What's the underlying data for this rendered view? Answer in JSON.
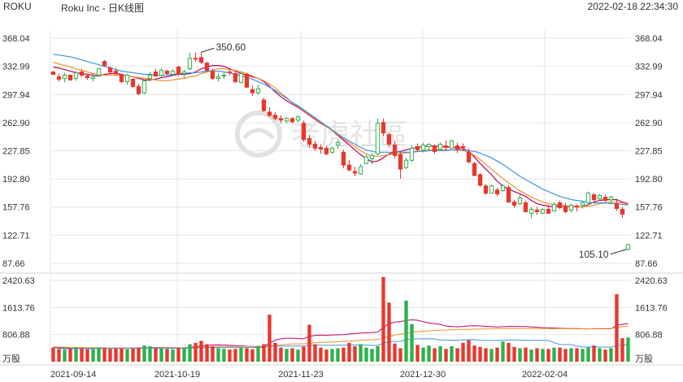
{
  "header": {
    "ticker": "ROKU",
    "title": "Roku Inc - 日K线图",
    "timestamp": "2022-02-18 22:34:30"
  },
  "watermark": "老虎社區",
  "colors": {
    "up": "#2bb24c",
    "down": "#e8372d",
    "ma1": "#c00060",
    "ma2": "#f09030",
    "ma3": "#3c96e0",
    "grid": "#e6e6e6"
  },
  "chart_data": [
    {
      "type": "candlestick",
      "name": "price",
      "y_ticks": [
        "368.04",
        "332.99",
        "297.94",
        "262.90",
        "227.85",
        "192.80",
        "157.76",
        "122.71",
        "87.66"
      ],
      "ylim": [
        87.66,
        368.04
      ],
      "x_labels": [
        "2021-09-14",
        "2021-10-19",
        "2021-11-23",
        "2021-12-30",
        "2022-02-04"
      ],
      "annotations": [
        {
          "text": "350.60",
          "value": 350.6
        },
        {
          "text": "105.10",
          "value": 105.1
        }
      ],
      "ohlc": [
        [
          326,
          327,
          322,
          323
        ],
        [
          320,
          324,
          314,
          317
        ],
        [
          318,
          325,
          313,
          322
        ],
        [
          322,
          323,
          315,
          316
        ],
        [
          318,
          327,
          315,
          325
        ],
        [
          326,
          330,
          320,
          322
        ],
        [
          321,
          324,
          316,
          319
        ],
        [
          318,
          324,
          314,
          320
        ],
        [
          322,
          331,
          320,
          330
        ],
        [
          339,
          341,
          332,
          334
        ],
        [
          331,
          333,
          324,
          326
        ],
        [
          327,
          331,
          322,
          324
        ],
        [
          322,
          324,
          312,
          314
        ],
        [
          314,
          324,
          310,
          322
        ],
        [
          317,
          318,
          306,
          308
        ],
        [
          308,
          311,
          297,
          299
        ],
        [
          300,
          317,
          298,
          315
        ],
        [
          318,
          326,
          314,
          322
        ],
        [
          326,
          330,
          320,
          321
        ],
        [
          322,
          331,
          319,
          328
        ],
        [
          327,
          329,
          322,
          324
        ],
        [
          323,
          329,
          321,
          327
        ],
        [
          332,
          334,
          321,
          323
        ],
        [
          324,
          329,
          318,
          326
        ],
        [
          330,
          350,
          328,
          343
        ],
        [
          343,
          350,
          339,
          342
        ],
        [
          344,
          351,
          336,
          338
        ],
        [
          337,
          339,
          326,
          328
        ],
        [
          327,
          330,
          316,
          318
        ],
        [
          318,
          325,
          314,
          320
        ],
        [
          321,
          326,
          317,
          322
        ],
        [
          326,
          330,
          322,
          325
        ],
        [
          324,
          328,
          312,
          314
        ],
        [
          313,
          326,
          312,
          324
        ],
        [
          323,
          325,
          306,
          307
        ],
        [
          304,
          309,
          296,
          300
        ],
        [
          300,
          310,
          297,
          305
        ],
        [
          291,
          294,
          276,
          278
        ],
        [
          276,
          282,
          270,
          272
        ],
        [
          272,
          276,
          266,
          268
        ],
        [
          268,
          272,
          262,
          266
        ],
        [
          265,
          270,
          262,
          268
        ],
        [
          268,
          270,
          262,
          264
        ],
        [
          266,
          272,
          263,
          270
        ],
        [
          262,
          265,
          239,
          242
        ],
        [
          243,
          248,
          231,
          236
        ],
        [
          236,
          240,
          228,
          231
        ],
        [
          232,
          236,
          224,
          230
        ],
        [
          231,
          234,
          222,
          224
        ],
        [
          226,
          233,
          224,
          231
        ],
        [
          235,
          241,
          230,
          238
        ],
        [
          226,
          229,
          206,
          210
        ],
        [
          210,
          216,
          202,
          204
        ],
        [
          202,
          208,
          196,
          200
        ],
        [
          199,
          211,
          198,
          208
        ],
        [
          212,
          223,
          211,
          220
        ],
        [
          218,
          225,
          211,
          222
        ],
        [
          224,
          268,
          222,
          262
        ],
        [
          263,
          268,
          246,
          250
        ],
        [
          248,
          251,
          232,
          236
        ],
        [
          235,
          240,
          218,
          222
        ],
        [
          223,
          226,
          193,
          205
        ],
        [
          207,
          219,
          205,
          216
        ],
        [
          216,
          235,
          214,
          231
        ],
        [
          233,
          237,
          226,
          229
        ],
        [
          229,
          238,
          226,
          235
        ],
        [
          233,
          237,
          228,
          236
        ],
        [
          234,
          236,
          224,
          227
        ],
        [
          230,
          238,
          229,
          236
        ],
        [
          234,
          241,
          228,
          232
        ],
        [
          231,
          242,
          231,
          240
        ],
        [
          234,
          238,
          225,
          229
        ],
        [
          233,
          237,
          228,
          232
        ],
        [
          226,
          231,
          212,
          214
        ],
        [
          212,
          214,
          196,
          197
        ],
        [
          198,
          200,
          183,
          185
        ],
        [
          184,
          186,
          173,
          175
        ],
        [
          175,
          186,
          175,
          184
        ],
        [
          179,
          182,
          171,
          174
        ],
        [
          178,
          186,
          177,
          184
        ],
        [
          182,
          185,
          163,
          164
        ],
        [
          164,
          167,
          157,
          160
        ],
        [
          162,
          173,
          160,
          169
        ],
        [
          163,
          166,
          151,
          152
        ],
        [
          150,
          158,
          144,
          155
        ],
        [
          154,
          158,
          148,
          152
        ],
        [
          150,
          156,
          149,
          155
        ],
        [
          155,
          160,
          149,
          150
        ],
        [
          153,
          164,
          152,
          161
        ],
        [
          163,
          166,
          155,
          157
        ],
        [
          159,
          163,
          150,
          152
        ],
        [
          154,
          162,
          151,
          160
        ],
        [
          159,
          161,
          152,
          158
        ],
        [
          160,
          165,
          156,
          163
        ],
        [
          163,
          177,
          161,
          175
        ],
        [
          173,
          175,
          165,
          167
        ],
        [
          168,
          174,
          165,
          172
        ],
        [
          170,
          173,
          164,
          166
        ],
        [
          167,
          172,
          163,
          170
        ],
        [
          162,
          168,
          153,
          156
        ],
        [
          155,
          158,
          144,
          149
        ],
        [
          105,
          112,
          104,
          111
        ]
      ],
      "ma_series": [
        {
          "values": [
            332,
            331,
            329,
            327,
            325,
            324,
            323,
            322,
            321,
            323,
            324,
            324,
            323,
            321,
            320,
            318,
            316,
            316,
            317,
            319,
            320,
            322,
            323,
            323,
            324,
            326,
            330,
            332,
            334,
            334,
            333,
            330,
            327,
            324,
            322,
            320,
            318,
            314,
            308,
            301,
            295,
            290,
            286,
            282,
            277,
            272,
            267,
            262,
            258,
            253,
            247,
            241,
            235,
            229,
            223,
            218,
            214,
            215,
            219,
            224,
            226,
            227,
            229,
            231,
            232,
            233,
            234,
            234,
            233,
            233,
            232,
            232,
            231,
            227,
            220,
            212,
            205,
            198,
            190,
            184,
            180,
            177,
            174,
            171,
            166,
            162,
            160,
            159,
            158,
            159,
            159,
            158,
            158,
            158,
            161,
            164,
            166,
            167,
            167,
            167,
            164,
            162
          ]
        },
        {
          "values": [
            338,
            336,
            334,
            332,
            330,
            328,
            326,
            324,
            323,
            322,
            322,
            322,
            322,
            321,
            320,
            319,
            318,
            317,
            316,
            315,
            315,
            316,
            317,
            318,
            320,
            321,
            324,
            326,
            328,
            330,
            330,
            329,
            328,
            326,
            324,
            321,
            318,
            315,
            311,
            306,
            300,
            294,
            288,
            283,
            278,
            273,
            268,
            263,
            258,
            253,
            248,
            243,
            238,
            233,
            228,
            224,
            221,
            221,
            222,
            223,
            224,
            224,
            225,
            226,
            227,
            228,
            229,
            229,
            229,
            229,
            229,
            229,
            228,
            226,
            222,
            217,
            211,
            205,
            199,
            193,
            188,
            183,
            178,
            174,
            170,
            167,
            164,
            162,
            161,
            160,
            159,
            159,
            158,
            158,
            159,
            160,
            162,
            163,
            164,
            164,
            163,
            161
          ]
        },
        {
          "values": [
            348,
            347,
            346,
            345,
            343,
            341,
            339,
            337,
            335,
            333,
            331,
            329,
            327,
            326,
            325,
            324,
            323,
            323,
            322,
            322,
            322,
            323,
            324,
            324,
            325,
            325,
            326,
            327,
            327,
            327,
            326,
            325,
            323,
            321,
            319,
            317,
            314,
            311,
            307,
            303,
            298,
            293,
            288,
            284,
            279,
            274,
            269,
            264,
            259,
            254,
            249,
            244,
            240,
            236,
            232,
            229,
            227,
            226,
            226,
            226,
            226,
            226,
            226,
            226,
            227,
            227,
            228,
            228,
            228,
            228,
            229,
            229,
            229,
            228,
            227,
            225,
            222,
            219,
            215,
            211,
            206,
            201,
            196,
            192,
            188,
            184,
            180,
            177,
            174,
            171,
            169,
            167,
            166,
            165,
            164,
            163,
            163,
            163,
            162,
            162,
            161,
            160
          ]
        }
      ]
    },
    {
      "type": "bar",
      "name": "volume",
      "y_ticks": [
        "2420.63",
        "1613.76",
        "806.88",
        "万股"
      ],
      "ylim": [
        0,
        2420.63
      ],
      "unit": "万股",
      "values": [
        420,
        380,
        360,
        380,
        420,
        400,
        370,
        380,
        420,
        410,
        380,
        390,
        400,
        370,
        390,
        420,
        480,
        460,
        400,
        390,
        380,
        370,
        410,
        400,
        520,
        560,
        620,
        520,
        460,
        400,
        380,
        360,
        380,
        420,
        400,
        370,
        470,
        520,
        1400,
        560,
        420,
        380,
        400,
        360,
        450,
        1100,
        520,
        420,
        360,
        380,
        400,
        420,
        560,
        460,
        520,
        420,
        380,
        460,
        2520,
        1760,
        540,
        400,
        1820,
        1120,
        500,
        420,
        480,
        400,
        460,
        380,
        460,
        400,
        560,
        640,
        480,
        440,
        400,
        380,
        420,
        600,
        560,
        440,
        400,
        420,
        360,
        400,
        380,
        380,
        420,
        420,
        380,
        400,
        400,
        380,
        420,
        480,
        400,
        360,
        400,
        2010,
        700,
        720
      ],
      "ma_series": [
        {
          "values": [
            430,
            420,
            410,
            400,
            395,
            395,
            396,
            396,
            397,
            398,
            400,
            402,
            403,
            404,
            404,
            405,
            413,
            419,
            418,
            418,
            416,
            414,
            414,
            414,
            426,
            446,
            470,
            486,
            496,
            498,
            495,
            487,
            480,
            472,
            462,
            450,
            447,
            452,
            560,
            640,
            680,
            700,
            700,
            690,
            680,
            752,
            785,
            792,
            786,
            796,
            798,
            804,
            826,
            840,
            855,
            860,
            867,
            880,
            1020,
            1140,
            1176,
            1196,
            1226,
            1246,
            1234,
            1191,
            1156,
            1134,
            1111,
            1063,
            1050,
            1038,
            1051,
            1068,
            1070,
            1066,
            1054,
            1040,
            1032,
            1040,
            1050,
            1051,
            1048,
            1046,
            1036,
            1027,
            1014,
            1006,
            1002,
            996,
            990,
            986,
            984,
            980,
            978,
            983,
            981,
            978,
            980,
            1083,
            1111,
            1137
          ]
        },
        {
          "values": [
            440,
            436,
            432,
            428,
            424,
            421,
            418,
            416,
            414,
            412,
            410,
            408,
            406,
            405,
            404,
            404,
            405,
            406,
            407,
            408,
            409,
            410,
            411,
            412,
            416,
            422,
            430,
            438,
            444,
            448,
            452,
            455,
            458,
            458,
            458,
            456,
            456,
            456,
            470,
            490,
            506,
            518,
            526,
            530,
            533,
            548,
            561,
            572,
            580,
            588,
            596,
            604,
            614,
            624,
            634,
            644,
            654,
            664,
            710,
            754,
            790,
            820,
            850,
            876,
            894,
            908,
            920,
            930,
            938,
            944,
            950,
            955,
            960,
            964,
            968,
            972,
            975,
            978,
            980,
            982,
            984,
            985,
            986,
            987,
            987,
            986,
            985,
            984,
            983,
            982,
            981,
            980,
            979,
            978,
            977,
            982,
            985,
            987,
            990,
            1022,
            1043,
            1060
          ]
        }
      ]
    }
  ]
}
